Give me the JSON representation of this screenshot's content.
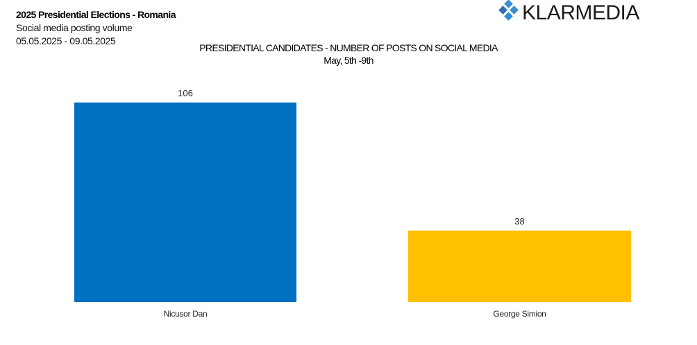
{
  "header": {
    "title": "2025 Presidential Elections - Romania",
    "subtitle": "Social media posting volume",
    "date_range": "05.05.2025 - 09.05.2025"
  },
  "logo": {
    "text": "KLARMEDIA",
    "color": "#3a8fd0"
  },
  "chart_data": {
    "type": "bar",
    "title": "PRESIDENTIAL CANDIDATES - NUMBER OF POSTS ON SOCIAL MEDIA",
    "subtitle": "May, 5th -9th",
    "categories": [
      "Nicusor Dan",
      "George Simion"
    ],
    "values": [
      106,
      38
    ],
    "colors": [
      "#0070c0",
      "#ffc000"
    ],
    "data_labels": [
      "106",
      "38"
    ],
    "xlabel": "",
    "ylabel": "",
    "ylim": [
      0,
      106
    ],
    "grid": false,
    "legend": "none"
  }
}
